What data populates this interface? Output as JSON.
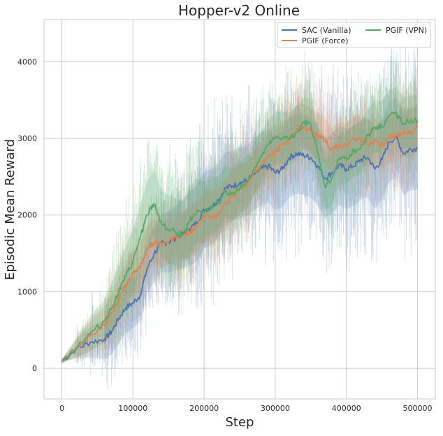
{
  "chart_data": {
    "type": "line",
    "title": "Hopper-v2 Online",
    "xlabel": "Step",
    "ylabel": "Episodic Mean Reward",
    "xlim": [
      -25000,
      525000
    ],
    "ylim": [
      -400,
      4550
    ],
    "xticks": [
      0,
      100000,
      200000,
      300000,
      400000,
      500000
    ],
    "xtick_labels": [
      "0",
      "100000",
      "200000",
      "300000",
      "400000",
      "500000"
    ],
    "yticks": [
      0,
      1000,
      2000,
      3000,
      4000
    ],
    "ytick_labels": [
      "0",
      "1000",
      "2000",
      "3000",
      "4000"
    ],
    "grid": true,
    "legend_position": "top-right",
    "series": [
      {
        "name": "SAC (Vanilla)",
        "color": "#4c72b0",
        "x": [
          0,
          20000,
          40000,
          60000,
          70000,
          80000,
          90000,
          100000,
          110000,
          120000,
          130000,
          140000,
          150000,
          160000,
          170000,
          180000,
          190000,
          200000,
          210000,
          220000,
          230000,
          240000,
          250000,
          260000,
          270000,
          280000,
          290000,
          300000,
          310000,
          320000,
          330000,
          340000,
          350000,
          360000,
          370000,
          380000,
          390000,
          400000,
          410000,
          420000,
          430000,
          440000,
          450000,
          460000,
          470000,
          480000,
          490000,
          500000
        ],
        "y": [
          90,
          250,
          340,
          380,
          480,
          650,
          790,
          850,
          950,
          1300,
          1500,
          1630,
          1650,
          1700,
          1760,
          1820,
          1900,
          2070,
          2100,
          2200,
          2350,
          2380,
          2420,
          2450,
          2530,
          2600,
          2640,
          2550,
          2600,
          2750,
          2800,
          2780,
          2750,
          2640,
          2480,
          2550,
          2650,
          2600,
          2640,
          2720,
          2750,
          2600,
          2720,
          2950,
          3020,
          2800,
          2860,
          2870
        ],
        "band": [
          20,
          120,
          200,
          260,
          300,
          320,
          330,
          330,
          330,
          340,
          360,
          380,
          400,
          420,
          460,
          480,
          500,
          500,
          500,
          480,
          470,
          460,
          460,
          460,
          470,
          480,
          480,
          480,
          500,
          520,
          520,
          520,
          520,
          520,
          520,
          520,
          520,
          520,
          520,
          520,
          520,
          520,
          520,
          520,
          520,
          540,
          540,
          540
        ]
      },
      {
        "name": "PGIF (Force)",
        "color": "#dd8452",
        "x": [
          0,
          20000,
          40000,
          60000,
          70000,
          80000,
          90000,
          100000,
          110000,
          120000,
          130000,
          140000,
          150000,
          160000,
          170000,
          180000,
          190000,
          200000,
          210000,
          220000,
          230000,
          240000,
          250000,
          260000,
          270000,
          280000,
          290000,
          300000,
          310000,
          320000,
          330000,
          340000,
          350000,
          360000,
          370000,
          380000,
          390000,
          400000,
          410000,
          420000,
          430000,
          440000,
          450000,
          460000,
          470000,
          480000,
          490000,
          500000
        ],
        "y": [
          90,
          260,
          420,
          560,
          720,
          900,
          1100,
          1250,
          1300,
          1560,
          1650,
          1620,
          1650,
          1710,
          1730,
          1780,
          1850,
          1980,
          1980,
          2000,
          2150,
          2250,
          2350,
          2370,
          2560,
          2660,
          2760,
          2820,
          2920,
          2990,
          3130,
          3150,
          3100,
          3020,
          2980,
          2850,
          2910,
          2900,
          2990,
          2980,
          2920,
          2970,
          2900,
          3000,
          3030,
          3080,
          3060,
          3150
        ],
        "band": [
          20,
          120,
          200,
          240,
          270,
          290,
          300,
          300,
          300,
          300,
          300,
          300,
          300,
          310,
          320,
          330,
          340,
          340,
          340,
          340,
          340,
          330,
          320,
          310,
          300,
          300,
          300,
          300,
          300,
          300,
          300,
          300,
          300,
          300,
          300,
          300,
          300,
          300,
          300,
          300,
          300,
          300,
          300,
          320,
          320,
          320,
          320,
          320
        ]
      },
      {
        "name": "PGIF (VPN)",
        "color": "#55a868",
        "x": [
          0,
          20000,
          40000,
          60000,
          70000,
          80000,
          90000,
          100000,
          110000,
          120000,
          130000,
          140000,
          150000,
          160000,
          170000,
          180000,
          190000,
          200000,
          210000,
          220000,
          230000,
          240000,
          250000,
          260000,
          270000,
          280000,
          290000,
          300000,
          310000,
          320000,
          330000,
          340000,
          350000,
          360000,
          370000,
          380000,
          390000,
          400000,
          410000,
          420000,
          430000,
          440000,
          450000,
          460000,
          470000,
          480000,
          490000,
          500000
        ],
        "y": [
          90,
          270,
          450,
          620,
          790,
          1000,
          1200,
          1390,
          1700,
          2000,
          2150,
          1890,
          1810,
          1780,
          1740,
          1930,
          2060,
          2030,
          2110,
          2150,
          2300,
          2280,
          2350,
          2420,
          2600,
          2750,
          2910,
          3000,
          3010,
          2990,
          3080,
          3200,
          3180,
          2790,
          2370,
          2480,
          2740,
          2740,
          2830,
          2870,
          3040,
          3150,
          3150,
          3290,
          3330,
          3200,
          3220,
          3230
        ],
        "band": [
          20,
          130,
          220,
          280,
          320,
          360,
          400,
          420,
          440,
          440,
          440,
          440,
          440,
          440,
          440,
          440,
          420,
          400,
          380,
          360,
          340,
          340,
          340,
          340,
          340,
          340,
          340,
          340,
          340,
          340,
          340,
          340,
          340,
          340,
          340,
          340,
          340,
          340,
          340,
          340,
          340,
          340,
          340,
          340,
          340,
          340,
          340,
          340
        ]
      }
    ]
  }
}
